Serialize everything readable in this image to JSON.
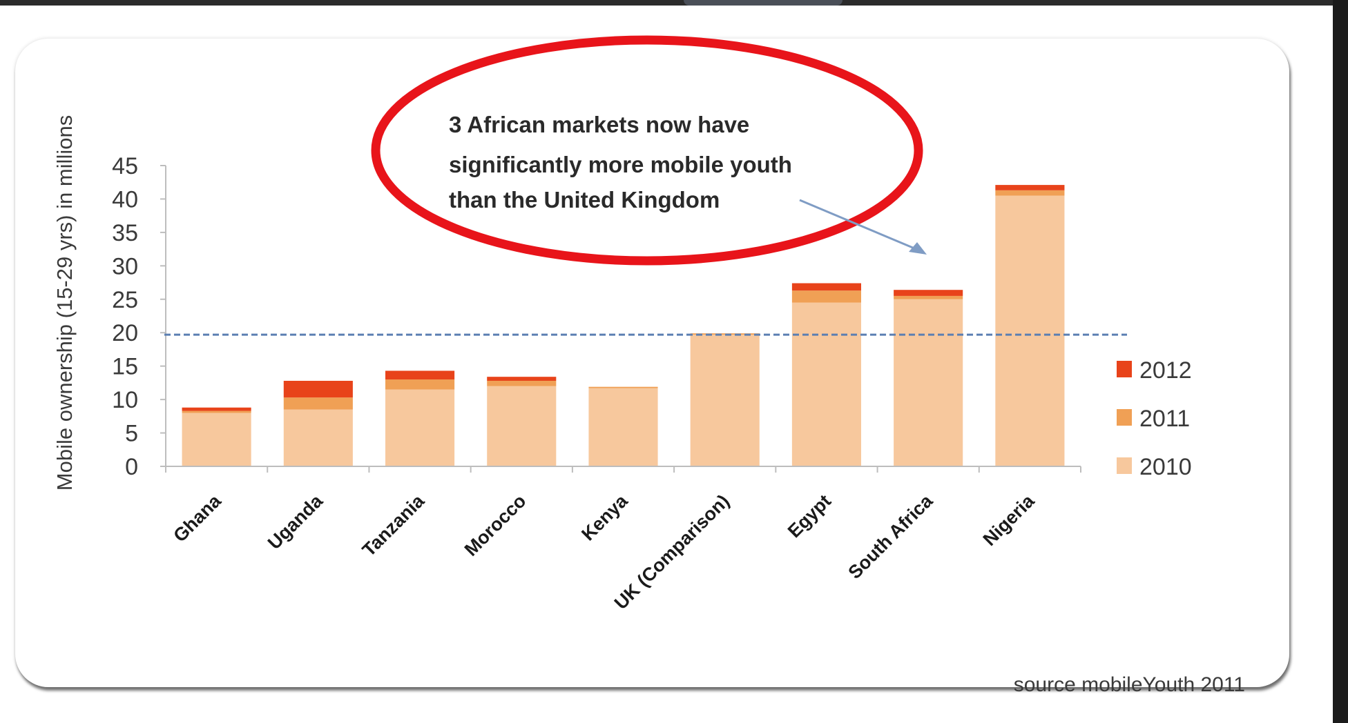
{
  "chart_data": {
    "type": "bar",
    "stacked": true,
    "categories": [
      "Ghana",
      "Uganda",
      "Tanzania",
      "Morocco",
      "Kenya",
      "UK (Comparison)",
      "Egypt",
      "South Africa",
      "Nigeria"
    ],
    "series": [
      {
        "name": "2010",
        "values": [
          8,
          8.5,
          11.5,
          12,
          11.7,
          19.7,
          24.5,
          25,
          40.5
        ],
        "color": "#f7c89d"
      },
      {
        "name": "2011",
        "values": [
          0.3,
          1.8,
          1.5,
          0.8,
          0.2,
          0.2,
          1.8,
          0.5,
          0.8
        ],
        "color": "#f0a055"
      },
      {
        "name": "2012",
        "values": [
          0.5,
          2.5,
          1.3,
          0.6,
          0,
          0,
          1.1,
          0.9,
          0.8
        ],
        "color": "#e8431a"
      }
    ],
    "title": "",
    "xlabel": "",
    "ylabel": "Mobile ownership (15-29 yrs) in millions",
    "ylim": [
      0,
      45
    ],
    "yticks": [
      0,
      5,
      10,
      15,
      20,
      25,
      30,
      35,
      40,
      45
    ],
    "reference_line": {
      "value": 19.7,
      "style": "dashed",
      "color": "#5b7fb2"
    },
    "legend": {
      "position": "right",
      "order": [
        "2012",
        "2011",
        "2010"
      ]
    },
    "grid": false,
    "annotation": {
      "lines": [
        "3 African markets now have",
        "significantly more mobile youth",
        "than the United Kingdom"
      ],
      "highlight_color": "#e8141a",
      "arrow_color": "#7f9cc4"
    },
    "source": "source mobileYouth 2011"
  }
}
